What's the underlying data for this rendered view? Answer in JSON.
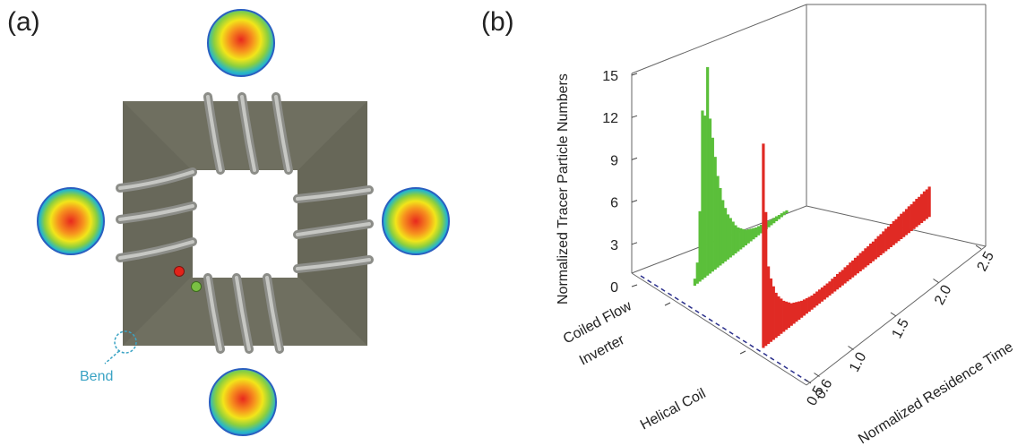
{
  "panels": {
    "a_label": "(a)",
    "b_label": "(b)"
  },
  "diagram": {
    "bend_label": "Bend",
    "colors": {
      "tube": "#6e6e5e",
      "coil": "#a9aaa6",
      "bend_marker": "#3aa3c4",
      "red_dot": "#e2231a",
      "green_dot": "#7ac143"
    },
    "profile_icons": [
      "velocity-profile-icon-top",
      "velocity-profile-icon-left",
      "velocity-profile-icon-right",
      "velocity-profile-icon-bottom"
    ]
  },
  "chart_data": {
    "type": "bar",
    "ylabel": "Normalized Tracer Particle Numbers",
    "xlabel": "Normalized Residence Time",
    "zlabel_categories": [
      "Coiled Flow\nInverter",
      "Helical Coil"
    ],
    "y_ticks": [
      "0",
      "3",
      "6",
      "9",
      "12",
      "15"
    ],
    "x_ticks": [
      "0.5",
      "0.6",
      "1.0",
      "1.5",
      "2.0",
      "2.5"
    ],
    "ylim": [
      0,
      15
    ],
    "series": [
      {
        "name": "Coiled Flow Inverter",
        "color": "#5bbf3a",
        "x": [
          0.62,
          0.65,
          0.68,
          0.71,
          0.74,
          0.77,
          0.8,
          0.83,
          0.86,
          0.89,
          0.92,
          0.95,
          0.98,
          1.01,
          1.04,
          1.07,
          1.1,
          1.13,
          1.16,
          1.19,
          1.22,
          1.25,
          1.28,
          1.31,
          1.34,
          1.37,
          1.4,
          1.43,
          1.46,
          1.49,
          1.52,
          1.55,
          1.58,
          1.61,
          1.64,
          1.67,
          1.7
        ],
        "values": [
          0.5,
          1.5,
          5.0,
          12.0,
          11.5,
          14.8,
          11.0,
          9.5,
          8.0,
          6.5,
          5.5,
          4.5,
          3.8,
          3.2,
          2.8,
          2.4,
          2.0,
          1.7,
          1.5,
          1.3,
          1.1,
          1.0,
          0.9,
          0.8,
          0.7,
          0.65,
          0.6,
          0.55,
          0.5,
          0.45,
          0.4,
          0.38,
          0.35,
          0.3,
          0.28,
          0.25,
          0.2
        ]
      },
      {
        "name": "Helical Coil",
        "color": "#e02a24",
        "x": [
          0.52,
          0.55,
          0.58,
          0.61,
          0.64,
          0.67,
          0.7,
          0.73,
          0.76,
          0.79,
          0.82,
          0.85,
          0.88,
          0.91,
          0.94,
          0.97,
          1.0,
          1.03,
          1.06,
          1.09,
          1.12,
          1.15,
          1.18,
          1.21,
          1.24,
          1.27,
          1.3,
          1.33,
          1.36,
          1.39,
          1.42,
          1.45,
          1.48,
          1.51,
          1.54,
          1.57,
          1.6,
          1.63,
          1.66,
          1.69,
          1.72,
          1.75,
          1.78,
          1.81,
          1.84,
          1.87,
          1.9,
          1.93,
          1.96,
          1.99,
          2.02,
          2.05,
          2.08,
          2.11,
          2.14,
          2.17,
          2.2,
          2.23,
          2.26,
          2.29,
          2.32,
          2.35,
          2.38,
          2.41,
          2.44,
          2.47
        ],
        "values": [
          14.5,
          9.5,
          5.5,
          4.5,
          3.8,
          3.2,
          2.8,
          2.5,
          2.2,
          2.0,
          1.8,
          1.6,
          1.5,
          1.4,
          1.3,
          1.2,
          1.15,
          1.1,
          1.05,
          1.0,
          1.0,
          1.0,
          1.0,
          1.0,
          1.0,
          1.0,
          1.0,
          1.05,
          1.05,
          1.1,
          1.1,
          1.1,
          1.15,
          1.15,
          1.2,
          1.2,
          1.25,
          1.25,
          1.3,
          1.3,
          1.35,
          1.35,
          1.4,
          1.4,
          1.45,
          1.5,
          1.5,
          1.55,
          1.6,
          1.6,
          1.65,
          1.7,
          1.7,
          1.75,
          1.8,
          1.8,
          1.85,
          1.9,
          1.9,
          1.95,
          2.0,
          2.0,
          2.05,
          2.1,
          2.1,
          2.15
        ]
      }
    ],
    "grid": false
  }
}
